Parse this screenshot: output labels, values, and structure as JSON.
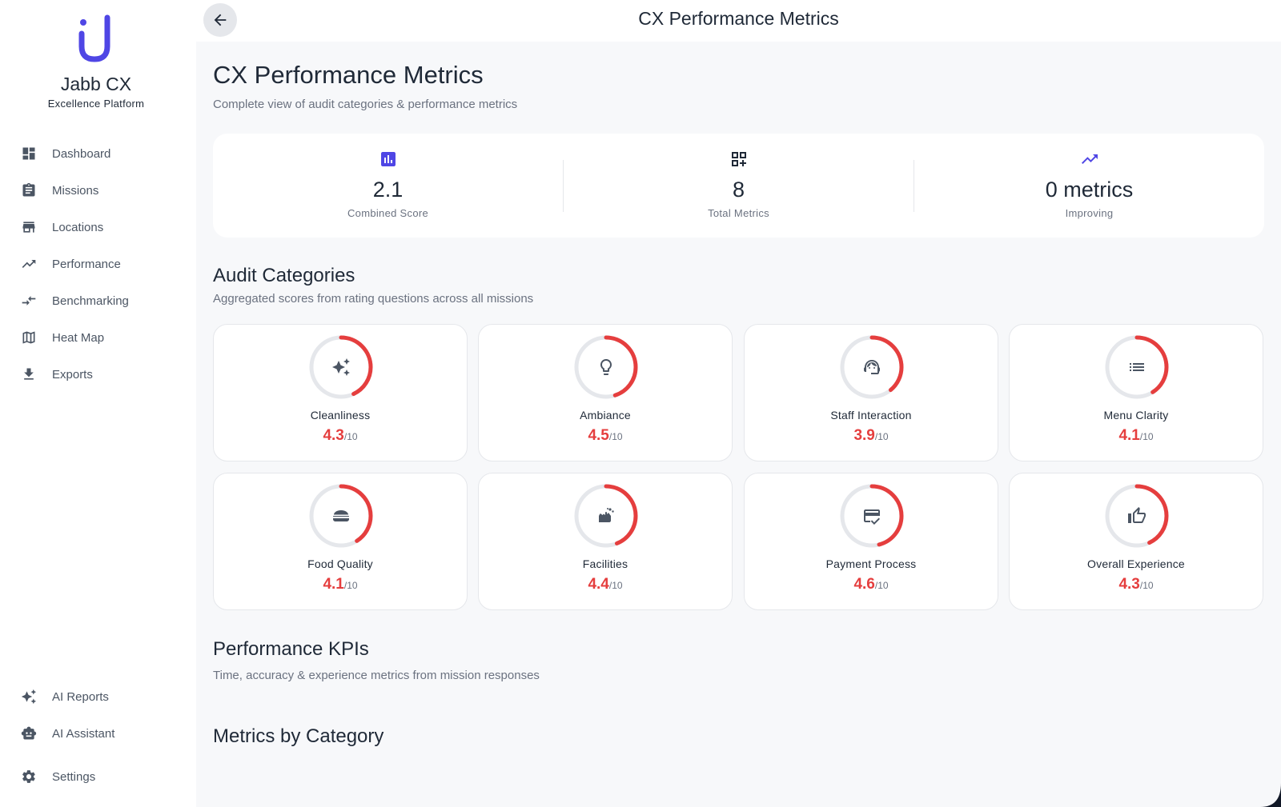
{
  "brand": {
    "name": "Jabb CX",
    "tagline": "Excellence Platform",
    "accent": "#4f46e5"
  },
  "sidebar": {
    "items": [
      {
        "label": "Dashboard",
        "icon": "dashboard-icon"
      },
      {
        "label": "Missions",
        "icon": "clipboard-icon"
      },
      {
        "label": "Locations",
        "icon": "store-icon"
      },
      {
        "label": "Performance",
        "icon": "trending-up-icon"
      },
      {
        "label": "Benchmarking",
        "icon": "compare-arrows-icon"
      },
      {
        "label": "Heat Map",
        "icon": "map-icon"
      },
      {
        "label": "Exports",
        "icon": "download-icon"
      }
    ],
    "bottom_items": [
      {
        "label": "AI Reports",
        "icon": "sparkles-icon"
      },
      {
        "label": "AI Assistant",
        "icon": "robot-icon"
      },
      {
        "label": "Settings",
        "icon": "gear-icon"
      }
    ]
  },
  "header": {
    "title": "CX Performance Metrics",
    "back_icon": "arrow-left-icon"
  },
  "page": {
    "title": "CX Performance Metrics",
    "subtitle": "Complete view of audit categories & performance metrics"
  },
  "stats": [
    {
      "value": "2.1",
      "label": "Combined Score",
      "icon": "bar-chart-icon"
    },
    {
      "value": "8",
      "label": "Total Metrics",
      "icon": "grid-icon"
    },
    {
      "value": "0 metrics",
      "label": "Improving",
      "icon": "trending-up-icon"
    }
  ],
  "audit": {
    "title": "Audit Categories",
    "subtitle": "Aggregated scores from rating questions across all missions",
    "max_label": "/10",
    "score_color": "#e53e3e",
    "track_color": "#e5e7eb",
    "categories": [
      {
        "name": "Cleanliness",
        "score": "4.3",
        "score_value": 4.3,
        "icon": "sparkles-icon"
      },
      {
        "name": "Ambiance",
        "score": "4.5",
        "score_value": 4.5,
        "icon": "lightbulb-icon"
      },
      {
        "name": "Staff Interaction",
        "score": "3.9",
        "score_value": 3.9,
        "icon": "support-agent-icon"
      },
      {
        "name": "Menu Clarity",
        "score": "4.1",
        "score_value": 4.1,
        "icon": "list-icon"
      },
      {
        "name": "Food Quality",
        "score": "4.1",
        "score_value": 4.1,
        "icon": "burger-icon"
      },
      {
        "name": "Facilities",
        "score": "4.4",
        "score_value": 4.4,
        "icon": "wash-hands-icon"
      },
      {
        "name": "Payment Process",
        "score": "4.6",
        "score_value": 4.6,
        "icon": "credit-card-check-icon"
      },
      {
        "name": "Overall Experience",
        "score": "4.3",
        "score_value": 4.3,
        "icon": "thumb-up-icon"
      }
    ]
  },
  "kpis": {
    "title": "Performance KPIs",
    "subtitle": "Time, accuracy & experience metrics from mission responses"
  },
  "metrics_by_category": {
    "title": "Metrics by Category"
  }
}
